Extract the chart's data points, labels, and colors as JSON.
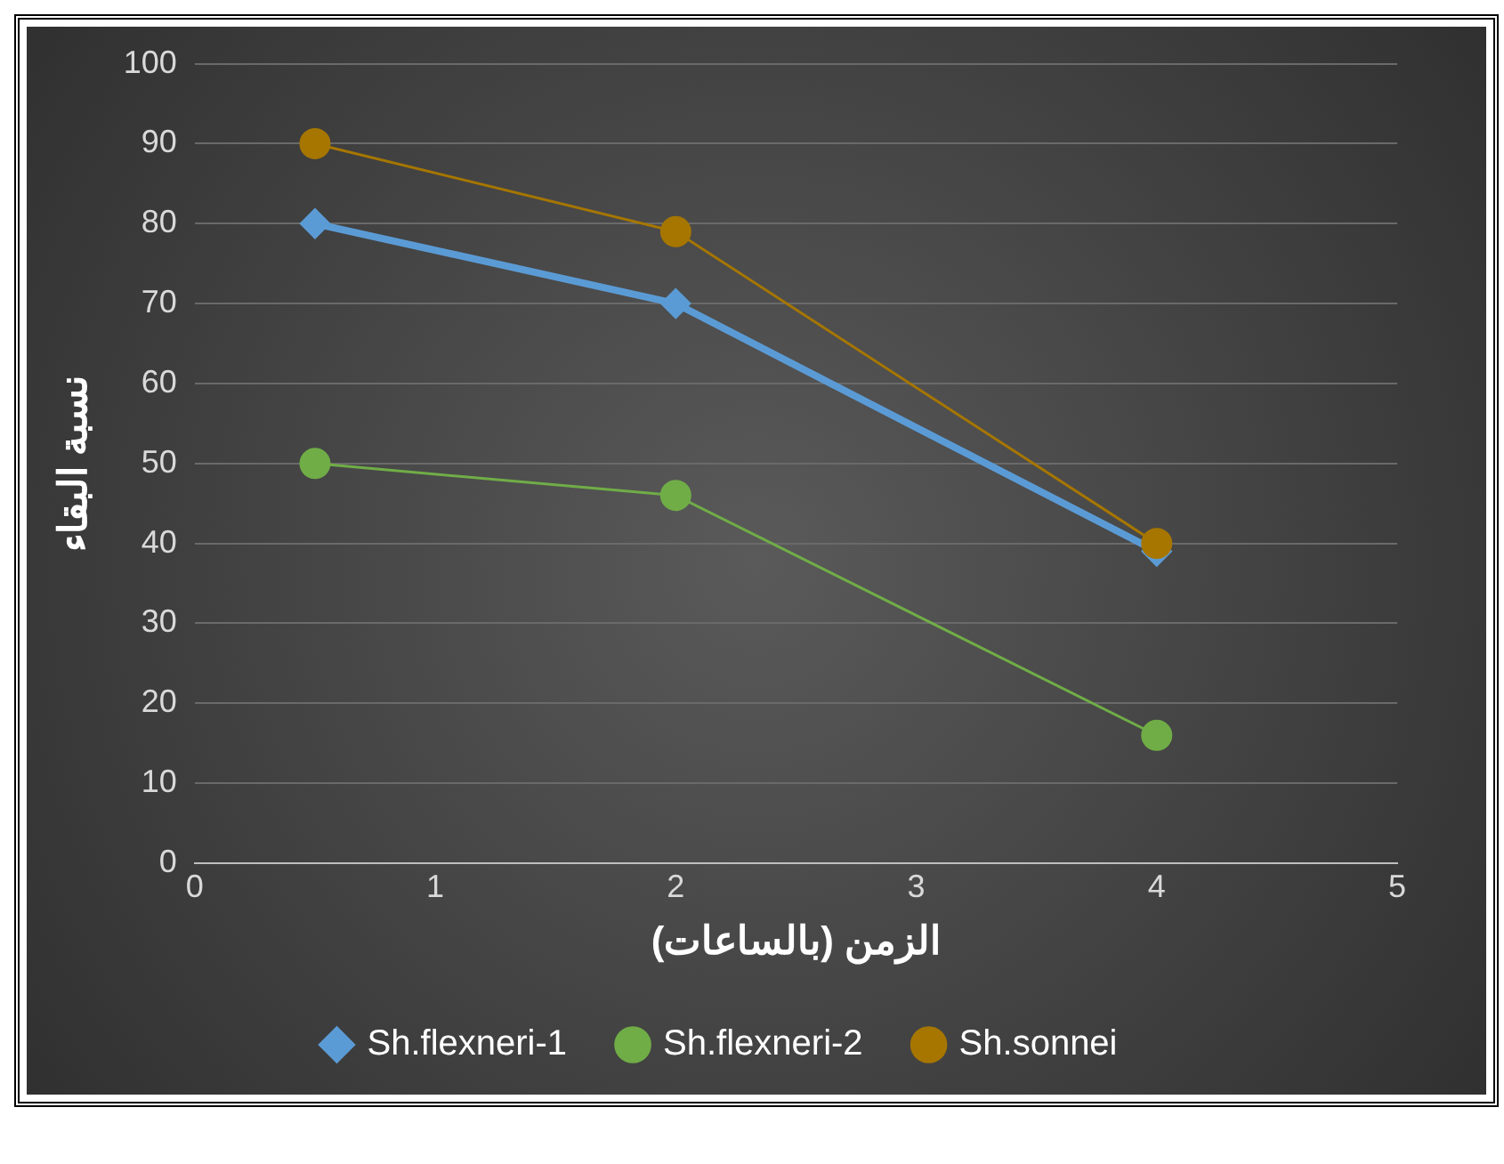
{
  "chart_data": {
    "type": "line",
    "xlabel": "الزمن (بالساعات)",
    "ylabel": "نسبة البقاء",
    "x": [
      0.5,
      2,
      4
    ],
    "series": [
      {
        "name": "Sh.flexneri-1",
        "color": "#5b9bd5",
        "values": [
          80,
          70,
          39
        ],
        "marker": "diamond"
      },
      {
        "name": "Sh.flexneri-2",
        "color": "#70ad47",
        "values": [
          50,
          46,
          16
        ],
        "marker": "circle"
      },
      {
        "name": "Sh.sonnei",
        "color": "#a67600",
        "values": [
          90,
          79,
          40
        ],
        "marker": "circle"
      }
    ],
    "xlim": [
      0,
      5
    ],
    "xticks": [
      0,
      1,
      2,
      3,
      4,
      5
    ],
    "ylim": [
      0,
      100
    ],
    "yticks": [
      0,
      10,
      20,
      30,
      40,
      50,
      60,
      70,
      80,
      90,
      100
    ],
    "grid": "y",
    "legend": "bottom"
  }
}
